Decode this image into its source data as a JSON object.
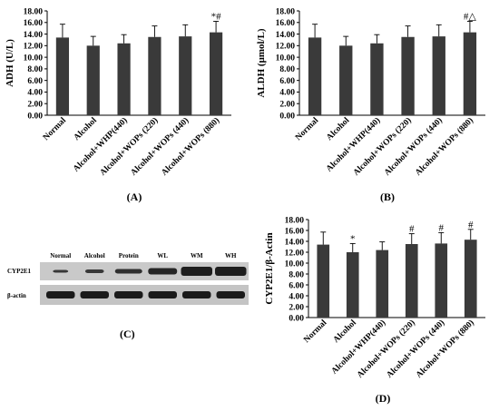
{
  "chart_data": [
    {
      "panel": "(A)",
      "type": "bar",
      "ylabel": "ADH (U/L)",
      "ylim": [
        0,
        18
      ],
      "yticks": [
        "0.00",
        "2.00",
        "4.00",
        "6.00",
        "8.00",
        "10.00",
        "12.00",
        "14.00",
        "16.00",
        "18.00"
      ],
      "categories": [
        "Normal",
        "Alcohol",
        "Alcohol+WHP(440)",
        "Alcohol+WOPs (220)",
        "Alcohol+WOPs (440)",
        "Alcohol+WOPs (880)"
      ],
      "values": [
        13.4,
        12.0,
        12.4,
        13.5,
        13.6,
        14.3
      ],
      "errors": [
        2.3,
        1.6,
        1.5,
        1.9,
        2.0,
        1.9
      ],
      "annotations": [
        "",
        "",
        "",
        "",
        "",
        "*#"
      ],
      "color": "#3a3a3a"
    },
    {
      "panel": "(B)",
      "type": "bar",
      "ylabel": "ALDH (μmol/L)",
      "ylim": [
        0,
        18
      ],
      "yticks": [
        "0.00",
        "2.00",
        "4.00",
        "6.00",
        "8.00",
        "10.00",
        "12.00",
        "14.00",
        "16.00",
        "18.00"
      ],
      "categories": [
        "Normal",
        "Alcohol",
        "Alcohol+WHP(440)",
        "Alcohol+WOPs (220)",
        "Alcohol+WOPs (440)",
        "Alcohol+WOPs (880)"
      ],
      "values": [
        13.4,
        12.0,
        12.4,
        13.5,
        13.6,
        14.3
      ],
      "errors": [
        2.3,
        1.6,
        1.5,
        1.9,
        2.0,
        1.9
      ],
      "annotations": [
        "",
        "",
        "",
        "",
        "",
        "#△"
      ],
      "color": "#3a3a3a"
    },
    {
      "panel": "(D)",
      "type": "bar",
      "ylabel": "CYP2E1/β-Actin",
      "ylim": [
        0,
        18
      ],
      "yticks": [
        "0.00",
        "2.00",
        "4.00",
        "6.00",
        "8.00",
        "10.00",
        "12.00",
        "14.00",
        "16.00",
        "18.00"
      ],
      "categories": [
        "Normal",
        "Alcohol",
        "Alcohol+WHP(440)",
        "Alcohol+WOPs (220)",
        "Alcohol+WOPs (440)",
        "Alcohol+WOPs (880)"
      ],
      "values": [
        13.4,
        12.0,
        12.4,
        13.5,
        13.6,
        14.3
      ],
      "errors": [
        2.3,
        1.6,
        1.5,
        1.9,
        2.0,
        1.9
      ],
      "annotations": [
        "",
        "*",
        "",
        "#",
        "#",
        "#"
      ],
      "color": "#3a3a3a"
    }
  ],
  "western_blot": {
    "panel": "(C)",
    "lanes": [
      "Normal",
      "Alcohol",
      "Protein",
      "WL",
      "WM",
      "WH"
    ],
    "rows": [
      "CYP2E1",
      "β-actin"
    ]
  }
}
